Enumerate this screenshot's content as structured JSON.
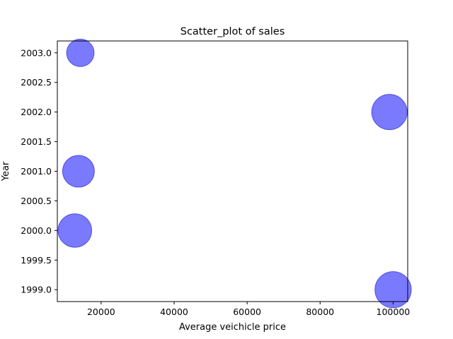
{
  "chart_data": {
    "type": "scatter",
    "title": "Scatter_plot of sales",
    "xlabel": "Average veichicle price",
    "ylabel": "Year",
    "xlim": [
      8000,
      104000
    ],
    "ylim": [
      1998.8,
      2003.2
    ],
    "xticks": [
      20000,
      40000,
      60000,
      80000,
      100000
    ],
    "yticks": [
      1999.0,
      1999.5,
      2000.0,
      2000.5,
      2001.0,
      2001.5,
      2002.0,
      2002.5,
      2003.0
    ],
    "grid": false,
    "colors": {
      "marker_fill": "#7a7aff",
      "marker_edge": "#4f4fe0",
      "axes": "#000000"
    },
    "points": [
      {
        "x": 14300,
        "y": 2003.0,
        "size": 0.6
      },
      {
        "x": 99000,
        "y": 2002.0,
        "size": 1.0
      },
      {
        "x": 13800,
        "y": 2001.0,
        "size": 0.8
      },
      {
        "x": 12800,
        "y": 2000.0,
        "size": 0.9
      },
      {
        "x": 100000,
        "y": 1999.0,
        "size": 1.05
      }
    ]
  }
}
